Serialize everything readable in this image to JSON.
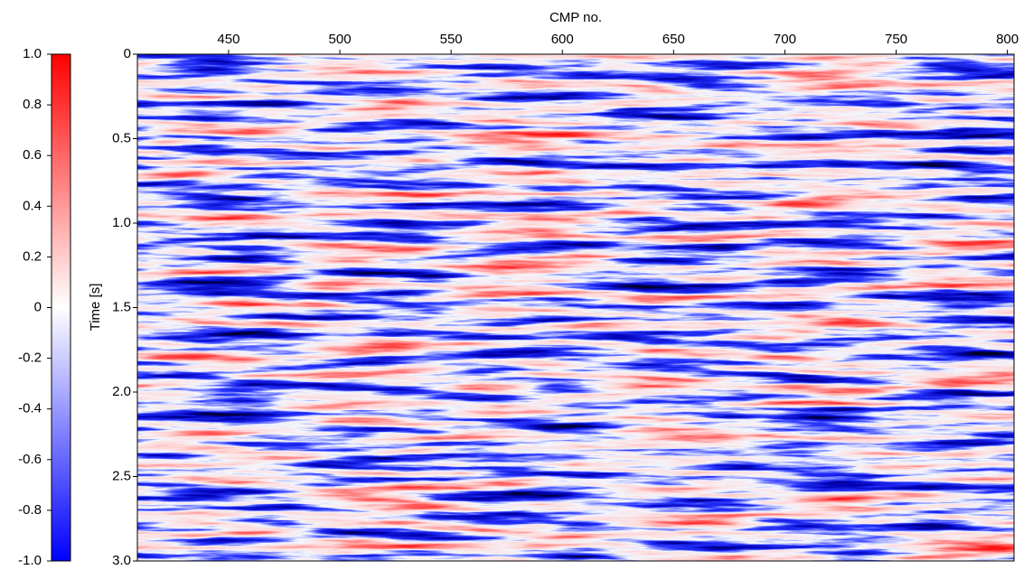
{
  "chart_data": {
    "type": "seismic",
    "x_label": "CMP no.",
    "y_label": "Time [s]",
    "xlim": [
      409,
      803
    ],
    "xticks": [
      450,
      500,
      550,
      600,
      650,
      700,
      750,
      800
    ],
    "ylim": [
      0,
      3
    ],
    "yticks": [
      0,
      0.5,
      {
        "value": 1,
        "label": "1.0"
      },
      1.5,
      {
        "value": 2,
        "label": "2.0"
      },
      2.5,
      {
        "value": 3,
        "label": "3.0"
      }
    ],
    "y_inverted": true,
    "colorbar": {
      "clim": [
        -1,
        1
      ],
      "colors": [
        "#0000ff",
        "#ffffff",
        "#ff0000"
      ],
      "ticks": [
        {
          "value": 1,
          "label": "1.0"
        },
        0.8,
        0.6,
        0.4,
        0.2,
        0,
        -0.2,
        -0.4,
        -0.6,
        -0.8,
        {
          "value": -1,
          "label": "-1.0"
        }
      ]
    }
  }
}
